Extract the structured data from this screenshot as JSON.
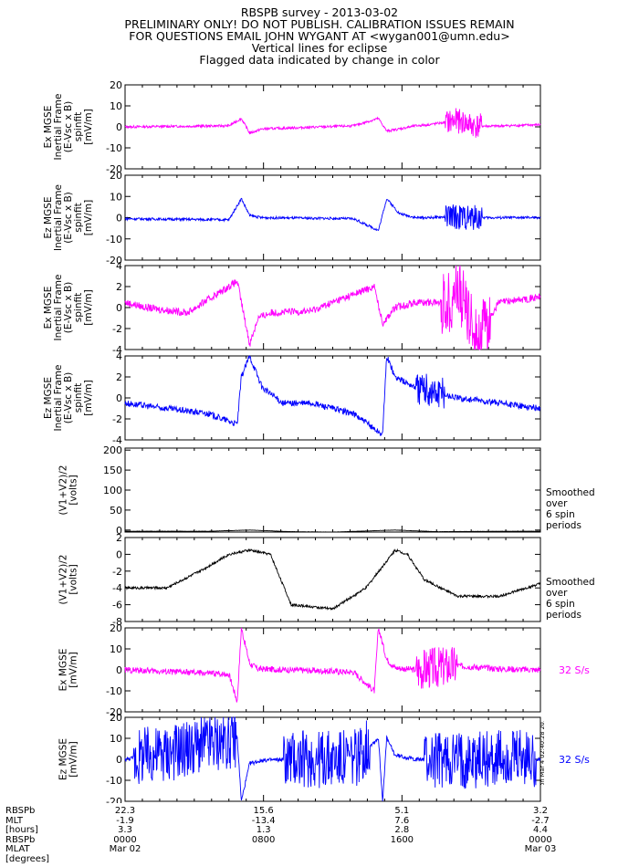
{
  "header": {
    "line1": "RBSPB survey - 2013-03-02",
    "line2": "PRELIMINARY ONLY! DO NOT PUBLISH. CALIBRATION ISSUES REMAIN",
    "line3": "FOR QUESTIONS EMAIL JOHN WYGANT AT <wygan001@umn.edu>",
    "line4": "Vertical lines for eclipse",
    "line5": "Flagged data indicated by change in color"
  },
  "colors": {
    "magenta": "#ff00ff",
    "blue": "#0000ff",
    "black": "#000000"
  },
  "chart_data": [
    {
      "type": "line",
      "ylabel": [
        "Ex MGSE",
        "Inertial Frame",
        "(E-Vsc x B)",
        "spinfit",
        "[mV/m]"
      ],
      "ylim": [
        -20,
        20
      ],
      "yticks": [
        -20,
        -10,
        0,
        10,
        20
      ],
      "color": "#ff00ff",
      "right_label": [],
      "series": [
        {
          "x": [
            0,
            0.25,
            0.28,
            0.3,
            0.33,
            0.55,
            0.61,
            0.63,
            0.66,
            0.7,
            0.73,
            0.8,
            0.84,
            0.88,
            1.0
          ],
          "values": [
            0,
            0.5,
            4,
            -3,
            -1,
            0.5,
            4,
            -2,
            -1,
            0.5,
            1,
            3,
            0.5,
            0.3,
            1
          ]
        }
      ]
    },
    {
      "type": "line",
      "ylabel": [
        "Ez MGSE",
        "Inertial Frame",
        "(E-Vsc x B)",
        "spinfit",
        "[mV/m]"
      ],
      "ylim": [
        -20,
        20
      ],
      "yticks": [
        -20,
        -10,
        0,
        10,
        20
      ],
      "color": "#0000ff",
      "right_label": [],
      "series": [
        {
          "x": [
            0,
            0.25,
            0.28,
            0.3,
            0.33,
            0.55,
            0.61,
            0.63,
            0.66,
            0.7,
            0.73,
            0.8,
            0.84,
            0.88,
            1.0
          ],
          "values": [
            -0.5,
            -1,
            9,
            1,
            0,
            -0.5,
            -6,
            9,
            2,
            0,
            0,
            0.5,
            0,
            0,
            0
          ]
        }
      ]
    },
    {
      "type": "line",
      "ylabel": [
        "Ex MGSE",
        "Inertial Frame",
        "(E-Vsc x B)",
        "spinfit",
        "[mV/m]"
      ],
      "ylim": [
        -4,
        4
      ],
      "yticks": [
        -4,
        -2,
        0,
        2,
        4
      ],
      "color": "#ff00ff",
      "right_label": [],
      "series": [
        {
          "x": [
            0,
            0.05,
            0.15,
            0.27,
            0.3,
            0.32,
            0.35,
            0.45,
            0.5,
            0.6,
            0.62,
            0.65,
            0.7,
            0.78,
            0.8,
            0.85,
            0.9,
            1.0
          ],
          "values": [
            0.5,
            0,
            -0.5,
            2.5,
            -3.5,
            -1,
            -0.5,
            -0.3,
            0.5,
            2,
            -1.5,
            0,
            0.5,
            0.5,
            2,
            -3,
            0.5,
            1
          ]
        }
      ]
    },
    {
      "type": "line",
      "ylabel": [
        "Ez MGSE",
        "Inertial Frame",
        "(E-Vsc x B)",
        "spinfit",
        "[mV/m]"
      ],
      "ylim": [
        -4,
        4
      ],
      "yticks": [
        -4,
        -2,
        0,
        2,
        4
      ],
      "color": "#0000ff",
      "right_label": [],
      "series": [
        {
          "x": [
            0,
            0.1,
            0.2,
            0.27,
            0.28,
            0.3,
            0.33,
            0.38,
            0.45,
            0.55,
            0.62,
            0.63,
            0.65,
            0.7,
            0.8,
            0.9,
            1.0
          ],
          "values": [
            -0.5,
            -1,
            -1.5,
            -2.5,
            2,
            4,
            1,
            -0.5,
            -0.5,
            -1.5,
            -3.5,
            4,
            2,
            1,
            0,
            -0.5,
            -1
          ]
        }
      ]
    },
    {
      "type": "line",
      "ylabel": [
        "(V1+V2)/2",
        "[volts]"
      ],
      "ylim": [
        -5,
        205
      ],
      "yticks": [
        0,
        50,
        100,
        150,
        200
      ],
      "color": "#000000",
      "right_label": [
        "Smoothed",
        "over",
        "6 spin",
        "periods"
      ],
      "series": [
        {
          "x": [
            0,
            0.2,
            0.3,
            0.4,
            0.5,
            0.65,
            0.75,
            0.9,
            1.0
          ],
          "values": [
            -3,
            -3,
            0,
            -4,
            -5,
            0,
            -4,
            -3,
            -3
          ]
        }
      ]
    },
    {
      "type": "line",
      "ylabel": [
        "(V1+V2)/2",
        "[volts]"
      ],
      "ylim": [
        -8,
        2
      ],
      "yticks": [
        -8,
        -6,
        -4,
        -2,
        0,
        2
      ],
      "color": "#000000",
      "right_label": [
        "Smoothed",
        "over",
        "6 spin",
        "periods"
      ],
      "series": [
        {
          "x": [
            0,
            0.1,
            0.18,
            0.25,
            0.3,
            0.35,
            0.4,
            0.5,
            0.58,
            0.65,
            0.68,
            0.72,
            0.8,
            0.9,
            1.0
          ],
          "values": [
            -4,
            -4,
            -2,
            0,
            0.5,
            0,
            -6,
            -6.5,
            -4,
            0.5,
            0,
            -3,
            -5,
            -5,
            -3.5
          ]
        }
      ]
    },
    {
      "type": "line",
      "ylabel": [
        "Ex MGSE",
        "[mV/m]"
      ],
      "ylim": [
        -20,
        20
      ],
      "yticks": [
        -20,
        -10,
        0,
        10,
        20
      ],
      "color": "#ff00ff",
      "right_label": [
        "32 S/s"
      ],
      "series": [
        {
          "x": [
            0,
            0.25,
            0.27,
            0.28,
            0.3,
            0.32,
            0.55,
            0.6,
            0.61,
            0.63,
            0.65,
            0.7,
            0.8,
            0.9,
            1.0
          ],
          "values": [
            0,
            -2,
            -15,
            20,
            3,
            0.5,
            -1,
            -10,
            20,
            5,
            1,
            0,
            2,
            0.5,
            0
          ]
        }
      ]
    },
    {
      "type": "line",
      "ylabel": [
        "Ez MGSE",
        "[mV/m]"
      ],
      "ylim": [
        -20,
        20
      ],
      "yticks": [
        -20,
        -10,
        0,
        10,
        20
      ],
      "color": "#0000ff",
      "right_label": [
        "32 S/s"
      ],
      "series": [
        {
          "x": [
            0,
            0.15,
            0.27,
            0.28,
            0.3,
            0.33,
            0.4,
            0.55,
            0.61,
            0.62,
            0.63,
            0.65,
            0.7,
            0.8,
            1.0
          ],
          "values": [
            0,
            5,
            10,
            -20,
            -2,
            -0.5,
            0,
            0,
            10,
            -20,
            10,
            2,
            0,
            0,
            0
          ]
        }
      ]
    }
  ],
  "ephemeris": {
    "labels": [
      "RBSPb",
      "MLT",
      "[hours]",
      "RBSPb",
      "MLAT",
      "[degrees]"
    ],
    "columns": [
      {
        "rows": [
          "22.3",
          "-1.9",
          "3.3",
          "0000",
          "Mar 02"
        ]
      },
      {
        "rows": [
          "15.6",
          "-13.4",
          "1.3",
          "0800",
          ""
        ]
      },
      {
        "rows": [
          "5.1",
          "7.6",
          "2.8",
          "1600",
          ""
        ]
      },
      {
        "rows": [
          "3.2",
          "-2.7",
          "4.4",
          "0000",
          "Mar 03"
        ]
      }
    ]
  },
  "stamp": "Mon Mar 4 02:40:28 2013"
}
